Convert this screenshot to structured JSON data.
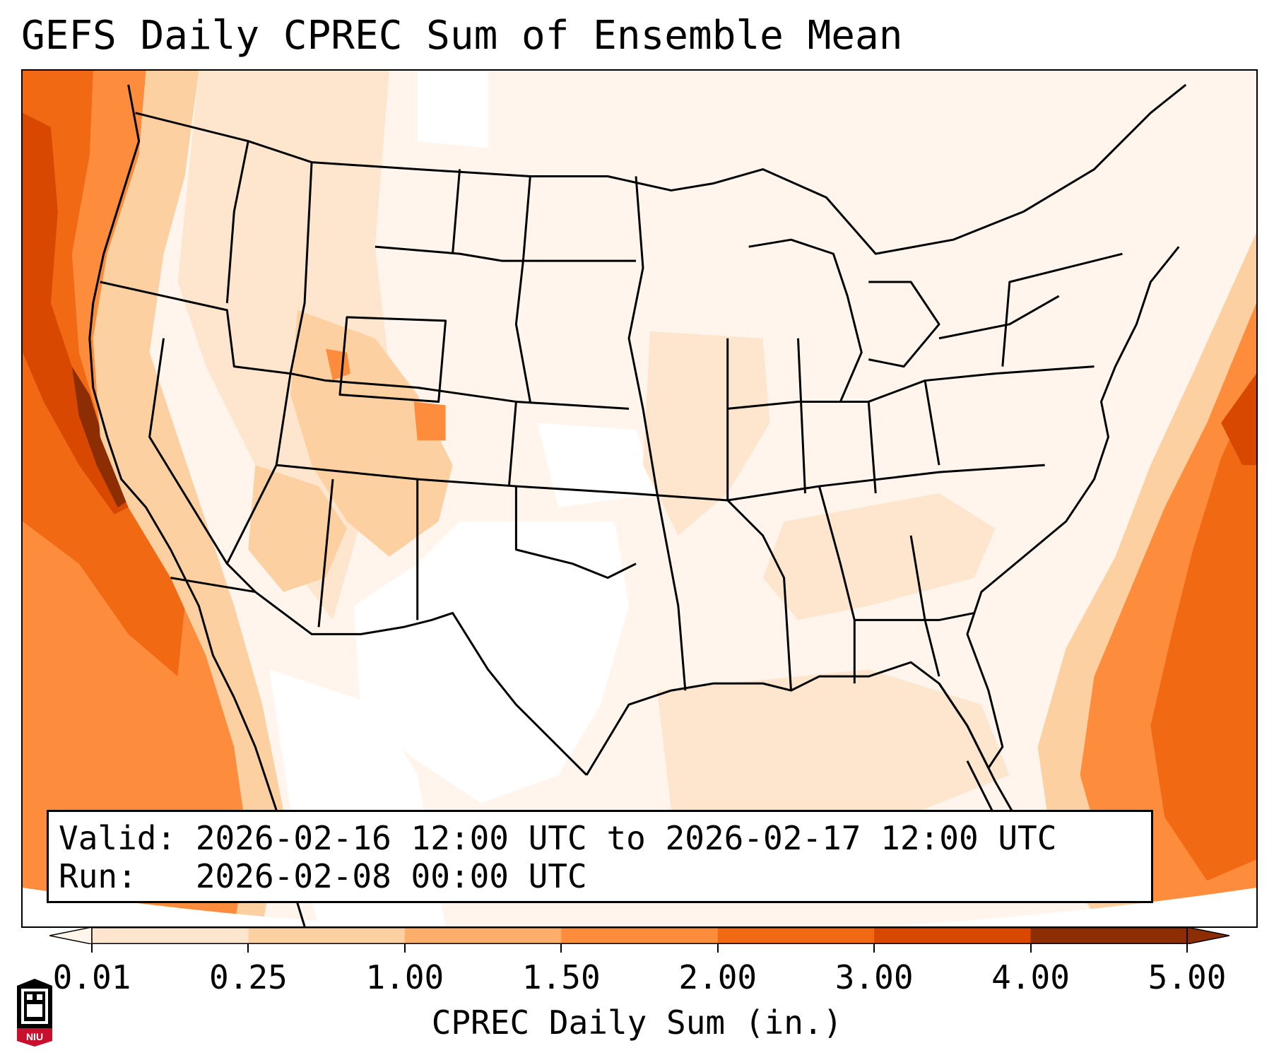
{
  "title": "GEFS Daily CPREC Sum of Ensemble Mean",
  "info": {
    "valid_line": "Valid: 2026-02-16 12:00 UTC to 2026-02-17 12:00 UTC",
    "run_line": "Run:   2026-02-08 00:00 UTC"
  },
  "colorbar": {
    "label": "CPREC Daily Sum (in.)",
    "ticks": [
      "0.01",
      "0.25",
      "1.00",
      "1.50",
      "2.00",
      "3.00",
      "4.00",
      "5.00"
    ],
    "colors": [
      "#fff5eb",
      "#fee6ce",
      "#fdd0a2",
      "#fdae6b",
      "#fd8d3c",
      "#f16913",
      "#d94801",
      "#8c2d04"
    ],
    "extend": "both"
  },
  "map": {
    "region": "Contiguous United States",
    "fill_colors": {
      "base": "#fff5ec",
      "very_light": "#fee6ce",
      "light": "#fdd0a2",
      "medium": "#fdae6b",
      "orange": "#fd8d3c",
      "dark_orange": "#f16913",
      "deep": "#d94801",
      "darkest": "#8c2d04"
    }
  },
  "logo": {
    "text": "NIU",
    "colors": {
      "primary": "#c8102e",
      "secondary": "#000000"
    }
  }
}
